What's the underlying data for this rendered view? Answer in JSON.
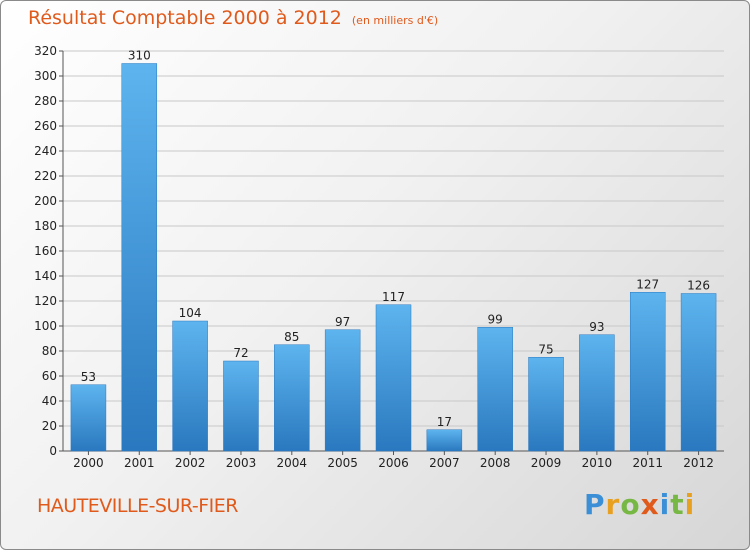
{
  "header": {
    "title": "Résultat Comptable 2000 à 2012",
    "unit": "(en milliers d'€)"
  },
  "footer": {
    "place": "HAUTEVILLE-SUR-FIER",
    "logo": "Proxiti"
  },
  "colors": {
    "accent": "#e05a1c",
    "bar_light": "#5db0ea",
    "bar_dark": "#2a7cc2"
  },
  "chart_data": {
    "type": "bar",
    "title": "Résultat Comptable 2000 à 2012",
    "subtitle": "(en milliers d'€)",
    "xlabel": "",
    "ylabel": "",
    "categories": [
      "2000",
      "2001",
      "2002",
      "2003",
      "2004",
      "2005",
      "2006",
      "2007",
      "2008",
      "2009",
      "2010",
      "2011",
      "2012"
    ],
    "values": [
      53,
      310,
      104,
      72,
      85,
      97,
      117,
      17,
      99,
      75,
      93,
      127,
      126
    ],
    "ylim": [
      0,
      320
    ],
    "yticks": [
      0,
      20,
      40,
      60,
      80,
      100,
      120,
      140,
      160,
      180,
      200,
      220,
      240,
      260,
      280,
      300,
      320
    ],
    "grid": true,
    "legend": "none"
  }
}
